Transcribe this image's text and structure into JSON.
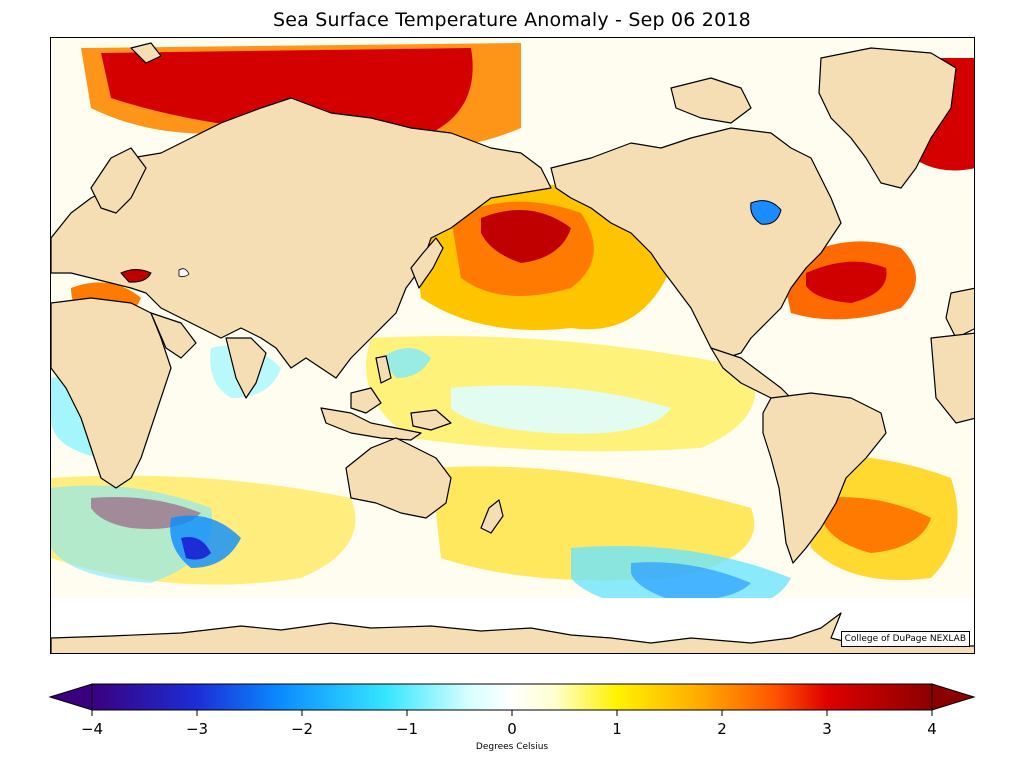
{
  "title": "Sea Surface Temperature Anomaly - Sep 06 2018",
  "credit": "College of DuPage NEXLAB",
  "colorbar": {
    "label": "Degrees Celsius",
    "min": -4,
    "max": 4,
    "ticks": [
      {
        "value": -4,
        "label": "−4"
      },
      {
        "value": -3,
        "label": "−3"
      },
      {
        "value": -2,
        "label": "−2"
      },
      {
        "value": -1,
        "label": "−1"
      },
      {
        "value": 0,
        "label": "0"
      },
      {
        "value": 1,
        "label": "1"
      },
      {
        "value": 2,
        "label": "2"
      },
      {
        "value": 3,
        "label": "3"
      },
      {
        "value": 4,
        "label": "4"
      }
    ],
    "stops": [
      {
        "value": -4,
        "color": "#3a0080"
      },
      {
        "value": -3,
        "color": "#1c2dd6"
      },
      {
        "value": -2.2,
        "color": "#0a8cff"
      },
      {
        "value": -1.2,
        "color": "#36e6ff"
      },
      {
        "value": -0.4,
        "color": "#d8ffff"
      },
      {
        "value": 0,
        "color": "#ffffff"
      },
      {
        "value": 0.4,
        "color": "#ffffd0"
      },
      {
        "value": 1,
        "color": "#fff200"
      },
      {
        "value": 1.8,
        "color": "#ffaa00"
      },
      {
        "value": 2.5,
        "color": "#ff5500"
      },
      {
        "value": 3,
        "color": "#e00000"
      },
      {
        "value": 4,
        "color": "#8c0000"
      }
    ]
  },
  "colors": {
    "land": "#f5deb3",
    "coast": "#000000",
    "ocean_neutral": "#fffef6"
  }
}
